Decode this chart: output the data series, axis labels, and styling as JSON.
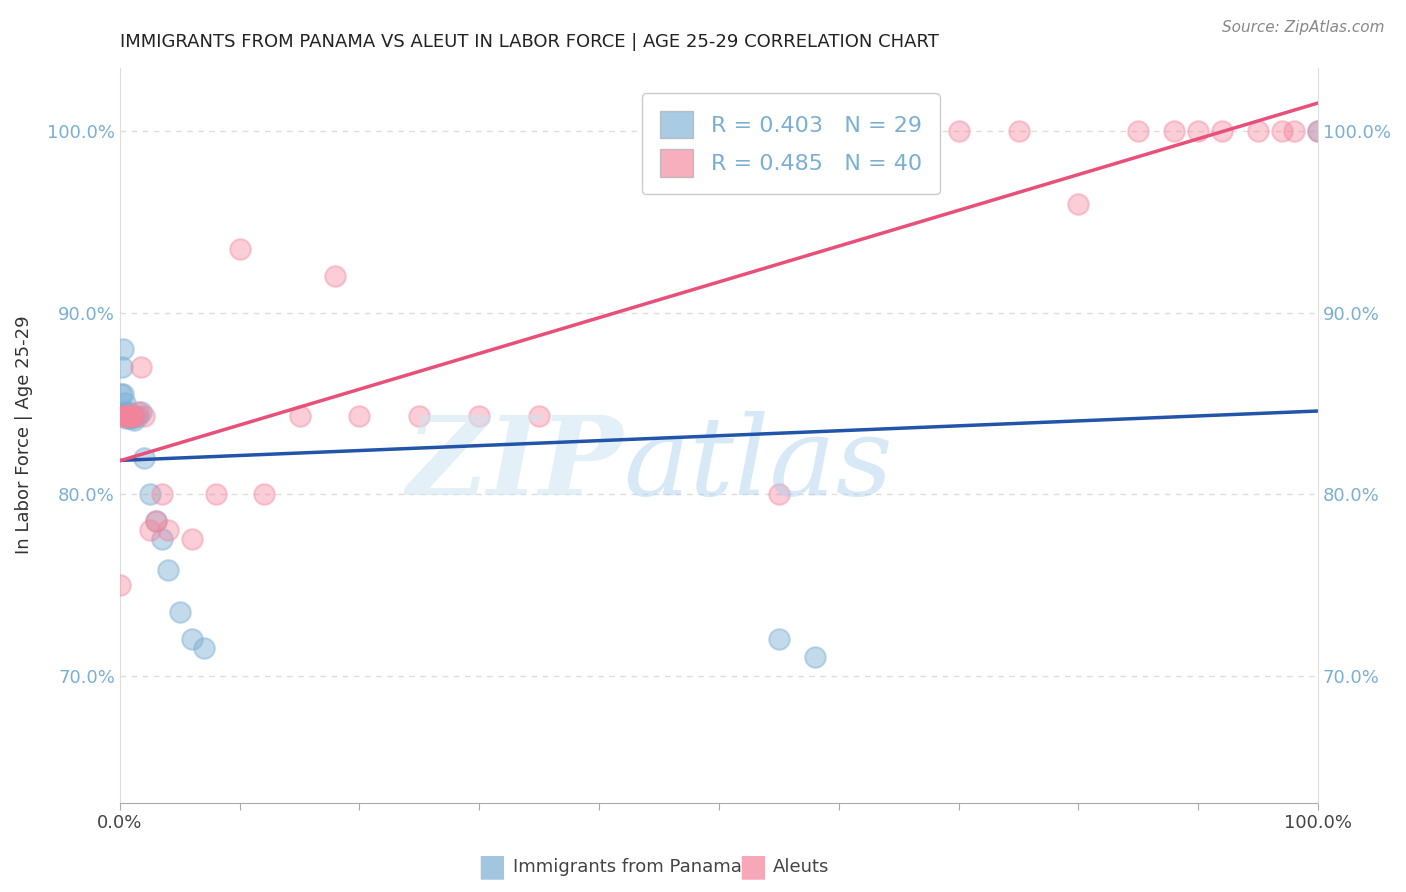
{
  "title": "IMMIGRANTS FROM PANAMA VS ALEUT IN LABOR FORCE | AGE 25-29 CORRELATION CHART",
  "source": "Source: ZipAtlas.com",
  "ylabel": "In Labor Force | Age 25-29",
  "xlim": [
    0,
    1.0
  ],
  "ylim": [
    0.63,
    1.035
  ],
  "yticks": [
    0.7,
    0.8,
    0.9,
    1.0
  ],
  "ytick_labels": [
    "70.0%",
    "80.0%",
    "90.0%",
    "100.0%"
  ],
  "legend_labels": [
    "Immigrants from Panama",
    "Aleuts"
  ],
  "blue_R": "0.403",
  "blue_N": "29",
  "pink_R": "0.485",
  "pink_N": "40",
  "blue_color": "#7BAFD4",
  "pink_color": "#F4849B",
  "blue_line_color": "#2255AA",
  "pink_line_color": "#E8507A",
  "grid_color": "#dddddd",
  "blue_points_x": [
    0.001,
    0.002,
    0.003,
    0.003,
    0.004,
    0.004,
    0.005,
    0.005,
    0.006,
    0.007,
    0.008,
    0.009,
    0.01,
    0.011,
    0.012,
    0.013,
    0.015,
    0.018,
    0.02,
    0.025,
    0.03,
    0.035,
    0.04,
    0.05,
    0.06,
    0.07,
    0.55,
    0.58,
    1.0
  ],
  "blue_points_y": [
    0.855,
    0.87,
    0.88,
    0.855,
    0.85,
    0.845,
    0.844,
    0.842,
    0.843,
    0.845,
    0.842,
    0.843,
    0.842,
    0.843,
    0.841,
    0.843,
    0.843,
    0.845,
    0.82,
    0.8,
    0.785,
    0.775,
    0.758,
    0.735,
    0.72,
    0.715,
    0.72,
    0.71,
    1.0
  ],
  "pink_points_x": [
    0.0,
    0.002,
    0.003,
    0.005,
    0.007,
    0.008,
    0.009,
    0.01,
    0.012,
    0.015,
    0.018,
    0.02,
    0.025,
    0.03,
    0.035,
    0.04,
    0.06,
    0.08,
    0.1,
    0.12,
    0.15,
    0.18,
    0.2,
    0.25,
    0.3,
    0.35,
    0.55,
    0.6,
    0.65,
    0.7,
    0.75,
    0.8,
    0.85,
    0.88,
    0.9,
    0.92,
    0.95,
    0.97,
    0.98,
    1.0
  ],
  "pink_points_y": [
    0.75,
    0.843,
    0.843,
    0.843,
    0.843,
    0.843,
    0.843,
    0.843,
    0.843,
    0.845,
    0.87,
    0.843,
    0.78,
    0.785,
    0.8,
    0.78,
    0.775,
    0.8,
    0.935,
    0.8,
    0.843,
    0.92,
    0.843,
    0.843,
    0.843,
    0.843,
    0.8,
    1.0,
    1.0,
    1.0,
    1.0,
    0.96,
    1.0,
    1.0,
    1.0,
    1.0,
    1.0,
    1.0,
    1.0,
    1.0
  ]
}
